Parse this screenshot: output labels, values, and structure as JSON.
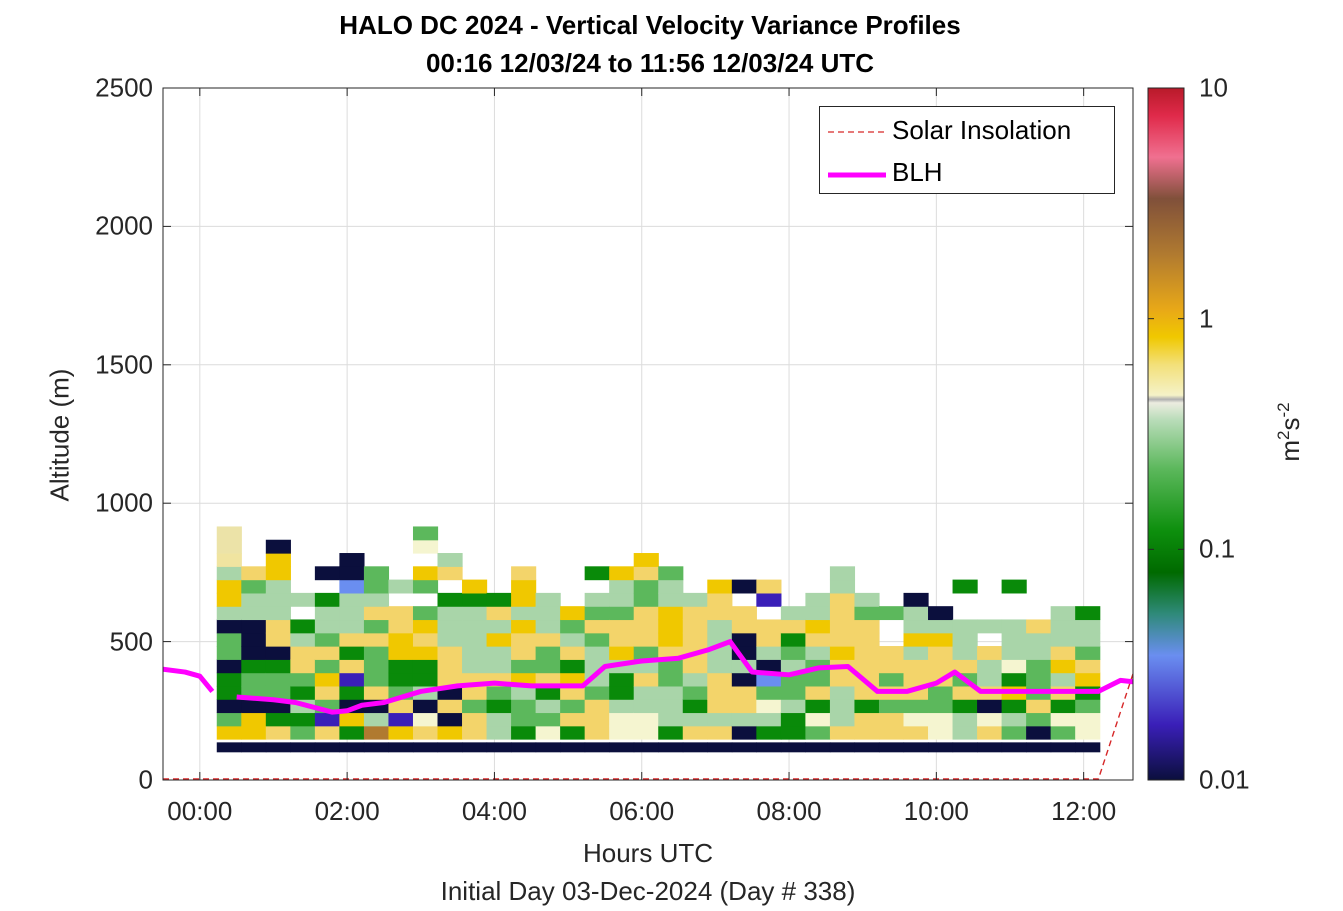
{
  "chart_data": {
    "type": "heatmap",
    "title": "HALO DC 2024 - Vertical Velocity Variance Profiles",
    "subtitle": "00:16 12/03/24 to 11:56 12/03/24  UTC",
    "xlabel": "Hours UTC",
    "x_sublabel": "Initial Day 03-Dec-2024 (Day # 338)",
    "ylabel": "Altitude (m)",
    "xlim": [
      -0.5,
      12.67
    ],
    "ylim": [
      0,
      2500
    ],
    "x_ticks": [
      0,
      2,
      4,
      6,
      8,
      10,
      12
    ],
    "x_tick_labels": [
      "00:00",
      "02:00",
      "04:00",
      "06:00",
      "08:00",
      "10:00",
      "12:00"
    ],
    "y_ticks": [
      0,
      500,
      1000,
      1500,
      2000,
      2500
    ],
    "y_tick_labels": [
      "0",
      "500",
      "1000",
      "1500",
      "2000",
      "2500"
    ],
    "grid": true,
    "legend_position": "top-right",
    "legend": [
      {
        "name": "Solar Insolation",
        "style": "dashed",
        "color": "#d62728"
      },
      {
        "name": "BLH",
        "style": "solid",
        "color": "#ff00ff"
      }
    ],
    "colorbar": {
      "label": "m",
      "label_sup1": "2",
      "label_mid": "s",
      "label_sup2": "-2",
      "scale": "log",
      "range": [
        0.01,
        10
      ],
      "tick_values": [
        0.01,
        0.1,
        1,
        10
      ],
      "tick_labels": [
        "0.01",
        "0.1",
        "1",
        "10"
      ]
    },
    "heatmap": {
      "x_start": 0.23,
      "time_step_hours": 0.333,
      "alt_start": 100,
      "alt_step": 48,
      "columns": [
        "NADFEEFDDFCAACXYY",
        "NAAFDDEFFFCCDB...",
        "NBEFDDEFBBCCCAAF",
        "NDECEDBBCE.C....",
        "NBGDBADBDCCE.F..",
        "NEAFEGBEBCCCIFF.",
        "NJCFBDDDBDBCDD..",
        "NAGBDEEAABB.C...",
        "NBHFCEEABAD.DA.HD",
        "NAFBFBBBCCCE.BC",
        "NBBDBBCCCCCEA.",
        "NCCEDBCCACBE..",
        "NEDDCADBBACAAB",
        "NHDCEBDDBCCC",
        "NEBDBAEBCDA",
        "NBBBDCCCDBDC.E",
        "NHHCEECABBDCCA",
        "NHHCCBCDBBBDDBA",
        "NECCCDDBAAACCD",
        "NBCEDCBBBBBC",
        "NBCBBBCCCCBBA",
        "NFCBBFCFFBB.F.",
        "NECHDIFCBB.GB",
        "NEECDDCDEBC",
        "NDHEBDDCBACC",
        "NBCCCBBABBBBCC",
        "NBBEBBBBBBDC",
        "NBBDBDBB..D",
        "NBHDBBBCACCN",
        "NHHDDBBBACN",
        "NCCEBDBCCC..E",
        "NBHFBCCB.C..",
        "NDCEAEHCCC..E",
        "NFDBDDDCCB",
        "NDHEBCABCCC..",
        "NHHDEABDCCE"
      ],
      "palette": {
        "A": "#f0c800",
        "B": "#f3d46a",
        "C": "#a9d5a9",
        "D": "#5cb85c",
        "E": "#098a09",
        "F": "#0b0f3d",
        "G": "#3a1fb8",
        "H": "#f5f5d0",
        "I": "#6a8ef0",
        "J": "#b07a30",
        "N": "#0b0f3d",
        "X": "#f0e4a0",
        "Y": "#ece3a8"
      }
    },
    "blh": {
      "x": [
        -0.5,
        -0.2,
        0.0,
        0.17,
        0.5,
        1.0,
        1.3,
        1.8,
        2.0,
        2.2,
        2.5,
        3.0,
        3.5,
        4.0,
        4.5,
        5.0,
        5.2,
        5.5,
        6.0,
        6.5,
        6.9,
        7.2,
        7.5,
        8.0,
        8.4,
        8.8,
        9.2,
        9.6,
        10.0,
        10.25,
        10.6,
        11.2,
        11.6,
        12.2,
        12.5,
        12.67
      ],
      "y": [
        400,
        390,
        375,
        320,
        300,
        290,
        280,
        245,
        250,
        270,
        280,
        320,
        340,
        350,
        340,
        340,
        340,
        410,
        430,
        440,
        470,
        500,
        390,
        380,
        405,
        410,
        320,
        320,
        350,
        390,
        320,
        320,
        320,
        320,
        360,
        355
      ]
    },
    "solar_insolation": {
      "x": [
        -0.5,
        12.2,
        12.67
      ],
      "y": [
        0,
        0,
        380
      ]
    }
  }
}
